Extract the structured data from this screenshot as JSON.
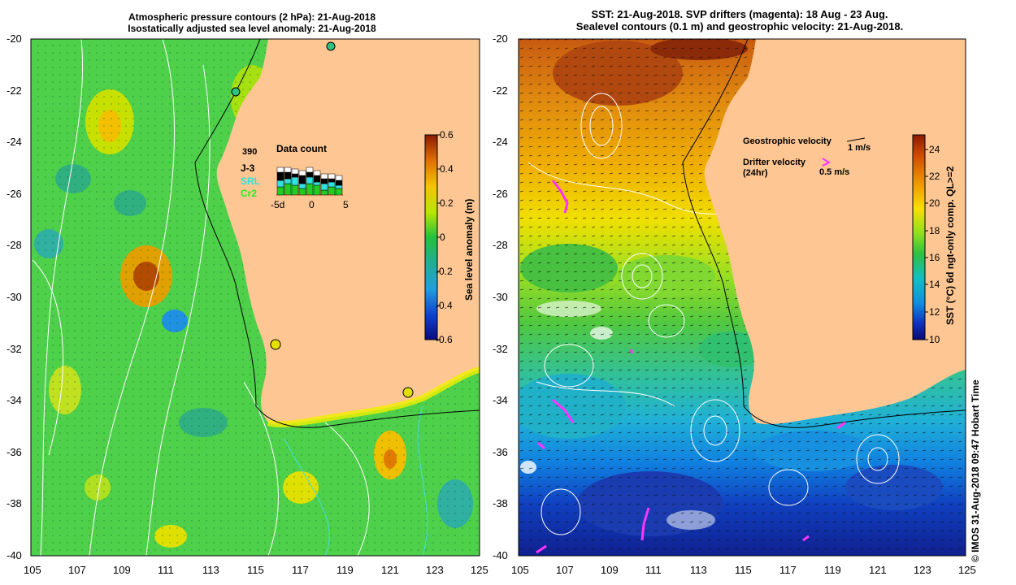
{
  "left_panel": {
    "title_line1": "Atmospheric pressure contours (2 hPa): 21-Aug-2018",
    "title_line2": "Isostatically adjusted sea level anomaly: 21-Aug-2018",
    "x_ticks": [
      "105",
      "107",
      "109",
      "111",
      "113",
      "115",
      "117",
      "119",
      "121",
      "123",
      "125"
    ],
    "y_ticks": [
      "-20",
      "-22",
      "-24",
      "-26",
      "-28",
      "-30",
      "-32",
      "-34",
      "-36",
      "-38",
      "-40"
    ],
    "colorbar_label": "Sea level anomaly (m)",
    "colorbar_ticks": [
      "0.6",
      "0.4",
      "0.2",
      "0",
      "-0.2",
      "-0.4",
      "-0.6"
    ],
    "inset": {
      "count": "390",
      "title": "Data count",
      "series": [
        {
          "name": "J-3",
          "color": "#000000"
        },
        {
          "name": "SRL",
          "color": "#33e0e0"
        },
        {
          "name": "Cr2",
          "color": "#22cc22"
        }
      ],
      "x_ticks": [
        "-5d",
        "0",
        "5"
      ]
    }
  },
  "right_panel": {
    "title_line1": "SST: 21-Aug-2018. SVP drifters (magenta): 18 Aug - 23 Aug.",
    "title_line2": "Sealevel contours (0.1 m) and geostrophic velocity: 21-Aug-2018.",
    "x_ticks": [
      "105",
      "107",
      "109",
      "111",
      "113",
      "115",
      "117",
      "119",
      "121",
      "123",
      "125"
    ],
    "y_ticks": [
      "-20",
      "-22",
      "-24",
      "-26",
      "-28",
      "-30",
      "-32",
      "-34",
      "-36",
      "-38",
      "-40"
    ],
    "colorbar_label": "SST (°C) 6d ngt-only comp. QL>=2",
    "colorbar_ticks": [
      "24",
      "22",
      "20",
      "18",
      "16",
      "14",
      "12",
      "10"
    ],
    "legend_geo": "Geostrophic velocity",
    "legend_geo_scale": "1 m/s",
    "legend_drifter": "Drifter velocity",
    "legend_drifter_sub": "(24hr)",
    "legend_drifter_scale": "0.5 m/s",
    "credit": "© IMOS 31-Aug-2018 09:47 Hobart Time"
  },
  "colors": {
    "land": "#fdc693",
    "drifter": "#ff33ff"
  }
}
